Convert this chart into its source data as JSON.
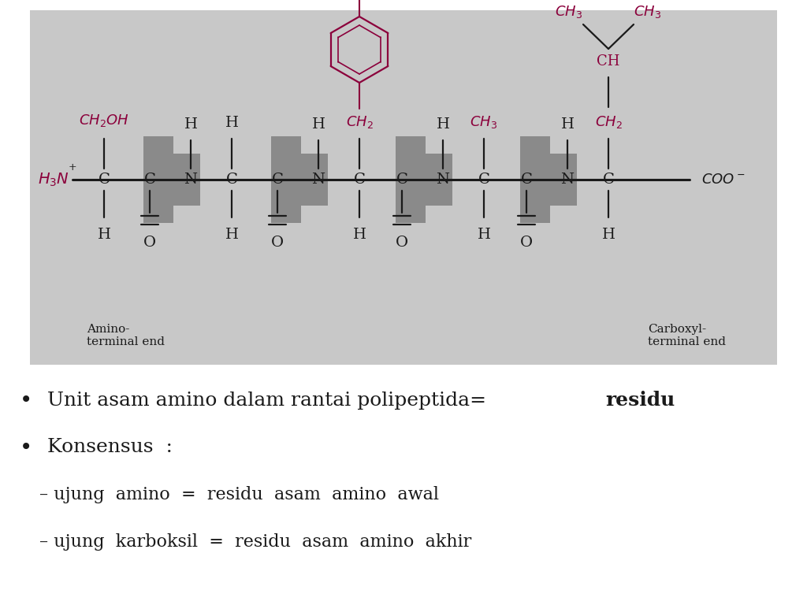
{
  "bg_color": "#ffffff",
  "diagram_bg": "#c8c8c8",
  "peptide_color": "#8b003b",
  "backbone_color": "#1a1a1a",
  "gray_box_color": "#8a8a8a",
  "bullet1_normal": "Unit asam amino dalam rantai polipeptida= ",
  "bullet1_bold": "residu",
  "bullet2": "Konsensus  :",
  "dash1": "– ujung  amino  =  residu  asam  amino  awal",
  "dash2": "– ujung  karboksil  =  residu  asam  amino  akhir",
  "amino_terminal": "Amino-\nterminal end",
  "carboxyl_terminal": "Carboxyl-\nterminal end"
}
